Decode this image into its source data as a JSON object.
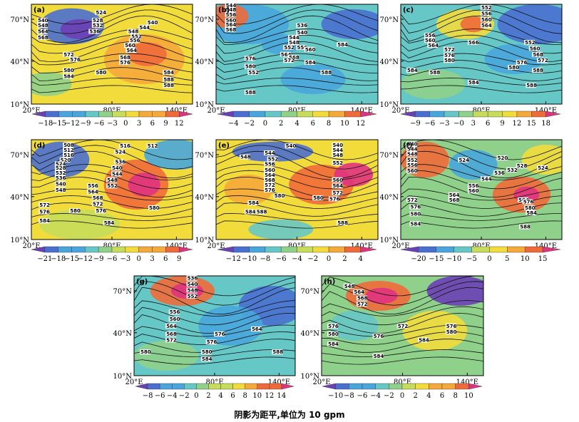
{
  "caption": "阴影为距平,单位为 10 gpm",
  "colors": {
    "anomaly_scale": [
      "#6b3fb5",
      "#4a6fd0",
      "#49a6dc",
      "#66c7c7",
      "#8fd08a",
      "#c7dc5a",
      "#f2dc3c",
      "#f5a93a",
      "#ef6a3a",
      "#e0337f"
    ]
  },
  "panels": [
    {
      "tag": "(a)",
      "lat_ticks": [
        "70°N",
        "40°N",
        "10°N"
      ],
      "lon_ticks": [
        "20°E",
        "80°E",
        "140°E"
      ],
      "contour_labels": [
        "524",
        "528",
        "532",
        "536",
        "540",
        "540",
        "544",
        "548",
        "548",
        "552",
        "556",
        "560",
        "564",
        "564",
        "568",
        "568",
        "572",
        "576",
        "576",
        "580",
        "580",
        "584",
        "584",
        "588",
        "588"
      ],
      "colorbar": [
        "−18",
        "−15",
        "−12",
        "−9",
        "−6",
        "−3",
        "0",
        "3",
        "6",
        "9",
        "12"
      ]
    },
    {
      "tag": "(b)",
      "lat_ticks": [
        "70°N",
        "40°N",
        "10°N"
      ],
      "lon_ticks": [
        "20°E",
        "80°E",
        "140°E"
      ],
      "contour_labels": [
        "544",
        "548",
        "556",
        "560",
        "564",
        "568",
        "536",
        "540",
        "544",
        "548",
        "552",
        "556",
        "560",
        "564",
        "568",
        "572",
        "576",
        "580",
        "584",
        "552",
        "584",
        "588",
        "588"
      ],
      "colorbar": [
        "−4",
        "−2",
        "0",
        "2",
        "4",
        "6",
        "8",
        "10",
        "12"
      ]
    },
    {
      "tag": "(c)",
      "lat_ticks": [
        "70°N",
        "40°N",
        "10°N"
      ],
      "lon_ticks": [
        "20°E",
        "80°E",
        "140°E"
      ],
      "contour_labels": [
        "552",
        "556",
        "560",
        "564",
        "556",
        "560",
        "564",
        "572",
        "576",
        "580",
        "566",
        "552",
        "560",
        "568",
        "576",
        "572",
        "580",
        "584",
        "588",
        "584",
        "588",
        "588"
      ],
      "colorbar": [
        "−9",
        "−6",
        "−3",
        "−0",
        "3",
        "6",
        "9",
        "12",
        "15",
        "18"
      ]
    },
    {
      "tag": "(d)",
      "lat_ticks": [
        "70°N",
        "40°N",
        "10°N"
      ],
      "lon_ticks": [
        "20°E",
        "80°E",
        "140°E"
      ],
      "contour_labels": [
        "508",
        "512",
        "516",
        "520",
        "524",
        "528",
        "532",
        "536",
        "540",
        "548",
        "516",
        "512",
        "524",
        "536",
        "540",
        "544",
        "548",
        "552",
        "556",
        "564",
        "568",
        "572",
        "572",
        "576",
        "576",
        "580",
        "580",
        "584",
        "584"
      ],
      "colorbar": [
        "−21",
        "−18",
        "−15",
        "−12",
        "−9",
        "−6",
        "−3",
        "0",
        "3",
        "6",
        "9"
      ]
    },
    {
      "tag": "(e)",
      "lat_ticks": [
        "70°N",
        "40°N",
        "10°N"
      ],
      "lon_ticks": [
        "20°E",
        "80°E",
        "140°E"
      ],
      "contour_labels": [
        "540",
        "544",
        "548",
        "552",
        "556",
        "560",
        "564",
        "568",
        "572",
        "576",
        "540",
        "544",
        "548",
        "552",
        "560",
        "564",
        "572",
        "576",
        "580",
        "584",
        "584",
        "588",
        "580",
        "588"
      ],
      "colorbar": [
        "−12",
        "−10",
        "−8",
        "−6",
        "−4",
        "−2",
        "0",
        "2",
        "4"
      ]
    },
    {
      "tag": "(f)",
      "lat_ticks": [
        "70°N",
        "40°N",
        "10°N"
      ],
      "lon_ticks": [
        "20°E",
        "80°E",
        "140°E"
      ],
      "contour_labels": [
        "540",
        "544",
        "548",
        "552",
        "556",
        "560",
        "524",
        "520",
        "528",
        "532",
        "536",
        "544",
        "524",
        "556",
        "560",
        "564",
        "568",
        "572",
        "576",
        "580",
        "584",
        "564",
        "576",
        "580",
        "584",
        "588"
      ],
      "colorbar": [
        "−20",
        "−15",
        "−10",
        "−5",
        "0",
        "5",
        "10",
        "15"
      ]
    },
    {
      "tag": "(g)",
      "lat_ticks": [
        "70°N",
        "40°N",
        "10°N"
      ],
      "lon_ticks": [
        "20°E",
        "80°E",
        "140°E"
      ],
      "contour_labels": [
        "536",
        "540",
        "548",
        "552",
        "556",
        "560",
        "564",
        "568",
        "572",
        "576",
        "576",
        "580",
        "584",
        "564",
        "580",
        "588"
      ],
      "colorbar": [
        "−8",
        "−6",
        "−4",
        "−2",
        "0",
        "2",
        "4",
        "6",
        "8",
        "10",
        "12",
        "14"
      ]
    },
    {
      "tag": "(h)",
      "lat_ticks": [
        "70°N",
        "40°N",
        "10°N"
      ],
      "lon_ticks": [
        "20°E",
        "80°E",
        "140°E"
      ],
      "contour_labels": [
        "548",
        "564",
        "568",
        "572",
        "576",
        "580",
        "584",
        "572",
        "576",
        "584",
        "576",
        "580",
        "584"
      ],
      "colorbar": [
        "−10",
        "−8",
        "−6",
        "−4",
        "−2",
        "0",
        "2",
        "4",
        "6",
        "8",
        "10"
      ]
    }
  ]
}
